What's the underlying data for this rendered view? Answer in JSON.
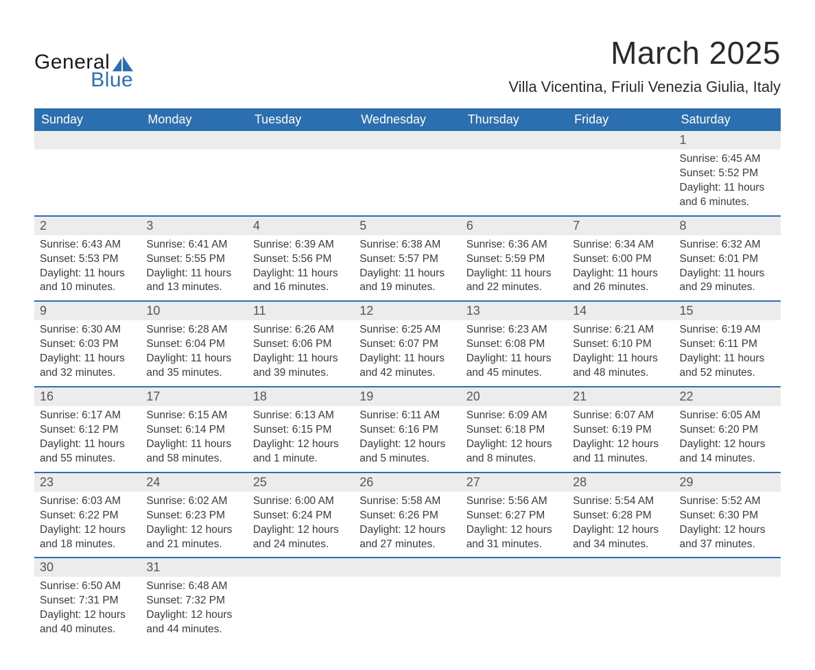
{
  "brand": {
    "word1": "General",
    "word2": "Blue",
    "sail_color": "#2c6fb0",
    "text_color_dark": "#1a1a1a"
  },
  "title": {
    "month_year": "March 2025",
    "location": "Villa Vicentina, Friuli Venezia Giulia, Italy"
  },
  "style": {
    "header_bg": "#2c6fb0",
    "header_text": "#ffffff",
    "daynum_bg": "#ececec",
    "row_divider": "#2c6fb0",
    "body_text": "#3a3a3a",
    "title_fontsize_pt": 35,
    "location_fontsize_pt": 17,
    "header_fontsize_pt": 14,
    "daynum_fontsize_pt": 14,
    "data_fontsize_pt": 12
  },
  "day_labels": [
    "Sunday",
    "Monday",
    "Tuesday",
    "Wednesday",
    "Thursday",
    "Friday",
    "Saturday"
  ],
  "weeks": [
    [
      {
        "n": "",
        "sunrise": "",
        "sunset": "",
        "daylight": ""
      },
      {
        "n": "",
        "sunrise": "",
        "sunset": "",
        "daylight": ""
      },
      {
        "n": "",
        "sunrise": "",
        "sunset": "",
        "daylight": ""
      },
      {
        "n": "",
        "sunrise": "",
        "sunset": "",
        "daylight": ""
      },
      {
        "n": "",
        "sunrise": "",
        "sunset": "",
        "daylight": ""
      },
      {
        "n": "",
        "sunrise": "",
        "sunset": "",
        "daylight": ""
      },
      {
        "n": "1",
        "sunrise": "Sunrise: 6:45 AM",
        "sunset": "Sunset: 5:52 PM",
        "daylight": "Daylight: 11 hours and 6 minutes."
      }
    ],
    [
      {
        "n": "2",
        "sunrise": "Sunrise: 6:43 AM",
        "sunset": "Sunset: 5:53 PM",
        "daylight": "Daylight: 11 hours and 10 minutes."
      },
      {
        "n": "3",
        "sunrise": "Sunrise: 6:41 AM",
        "sunset": "Sunset: 5:55 PM",
        "daylight": "Daylight: 11 hours and 13 minutes."
      },
      {
        "n": "4",
        "sunrise": "Sunrise: 6:39 AM",
        "sunset": "Sunset: 5:56 PM",
        "daylight": "Daylight: 11 hours and 16 minutes."
      },
      {
        "n": "5",
        "sunrise": "Sunrise: 6:38 AM",
        "sunset": "Sunset: 5:57 PM",
        "daylight": "Daylight: 11 hours and 19 minutes."
      },
      {
        "n": "6",
        "sunrise": "Sunrise: 6:36 AM",
        "sunset": "Sunset: 5:59 PM",
        "daylight": "Daylight: 11 hours and 22 minutes."
      },
      {
        "n": "7",
        "sunrise": "Sunrise: 6:34 AM",
        "sunset": "Sunset: 6:00 PM",
        "daylight": "Daylight: 11 hours and 26 minutes."
      },
      {
        "n": "8",
        "sunrise": "Sunrise: 6:32 AM",
        "sunset": "Sunset: 6:01 PM",
        "daylight": "Daylight: 11 hours and 29 minutes."
      }
    ],
    [
      {
        "n": "9",
        "sunrise": "Sunrise: 6:30 AM",
        "sunset": "Sunset: 6:03 PM",
        "daylight": "Daylight: 11 hours and 32 minutes."
      },
      {
        "n": "10",
        "sunrise": "Sunrise: 6:28 AM",
        "sunset": "Sunset: 6:04 PM",
        "daylight": "Daylight: 11 hours and 35 minutes."
      },
      {
        "n": "11",
        "sunrise": "Sunrise: 6:26 AM",
        "sunset": "Sunset: 6:06 PM",
        "daylight": "Daylight: 11 hours and 39 minutes."
      },
      {
        "n": "12",
        "sunrise": "Sunrise: 6:25 AM",
        "sunset": "Sunset: 6:07 PM",
        "daylight": "Daylight: 11 hours and 42 minutes."
      },
      {
        "n": "13",
        "sunrise": "Sunrise: 6:23 AM",
        "sunset": "Sunset: 6:08 PM",
        "daylight": "Daylight: 11 hours and 45 minutes."
      },
      {
        "n": "14",
        "sunrise": "Sunrise: 6:21 AM",
        "sunset": "Sunset: 6:10 PM",
        "daylight": "Daylight: 11 hours and 48 minutes."
      },
      {
        "n": "15",
        "sunrise": "Sunrise: 6:19 AM",
        "sunset": "Sunset: 6:11 PM",
        "daylight": "Daylight: 11 hours and 52 minutes."
      }
    ],
    [
      {
        "n": "16",
        "sunrise": "Sunrise: 6:17 AM",
        "sunset": "Sunset: 6:12 PM",
        "daylight": "Daylight: 11 hours and 55 minutes."
      },
      {
        "n": "17",
        "sunrise": "Sunrise: 6:15 AM",
        "sunset": "Sunset: 6:14 PM",
        "daylight": "Daylight: 11 hours and 58 minutes."
      },
      {
        "n": "18",
        "sunrise": "Sunrise: 6:13 AM",
        "sunset": "Sunset: 6:15 PM",
        "daylight": "Daylight: 12 hours and 1 minute."
      },
      {
        "n": "19",
        "sunrise": "Sunrise: 6:11 AM",
        "sunset": "Sunset: 6:16 PM",
        "daylight": "Daylight: 12 hours and 5 minutes."
      },
      {
        "n": "20",
        "sunrise": "Sunrise: 6:09 AM",
        "sunset": "Sunset: 6:18 PM",
        "daylight": "Daylight: 12 hours and 8 minutes."
      },
      {
        "n": "21",
        "sunrise": "Sunrise: 6:07 AM",
        "sunset": "Sunset: 6:19 PM",
        "daylight": "Daylight: 12 hours and 11 minutes."
      },
      {
        "n": "22",
        "sunrise": "Sunrise: 6:05 AM",
        "sunset": "Sunset: 6:20 PM",
        "daylight": "Daylight: 12 hours and 14 minutes."
      }
    ],
    [
      {
        "n": "23",
        "sunrise": "Sunrise: 6:03 AM",
        "sunset": "Sunset: 6:22 PM",
        "daylight": "Daylight: 12 hours and 18 minutes."
      },
      {
        "n": "24",
        "sunrise": "Sunrise: 6:02 AM",
        "sunset": "Sunset: 6:23 PM",
        "daylight": "Daylight: 12 hours and 21 minutes."
      },
      {
        "n": "25",
        "sunrise": "Sunrise: 6:00 AM",
        "sunset": "Sunset: 6:24 PM",
        "daylight": "Daylight: 12 hours and 24 minutes."
      },
      {
        "n": "26",
        "sunrise": "Sunrise: 5:58 AM",
        "sunset": "Sunset: 6:26 PM",
        "daylight": "Daylight: 12 hours and 27 minutes."
      },
      {
        "n": "27",
        "sunrise": "Sunrise: 5:56 AM",
        "sunset": "Sunset: 6:27 PM",
        "daylight": "Daylight: 12 hours and 31 minutes."
      },
      {
        "n": "28",
        "sunrise": "Sunrise: 5:54 AM",
        "sunset": "Sunset: 6:28 PM",
        "daylight": "Daylight: 12 hours and 34 minutes."
      },
      {
        "n": "29",
        "sunrise": "Sunrise: 5:52 AM",
        "sunset": "Sunset: 6:30 PM",
        "daylight": "Daylight: 12 hours and 37 minutes."
      }
    ],
    [
      {
        "n": "30",
        "sunrise": "Sunrise: 6:50 AM",
        "sunset": "Sunset: 7:31 PM",
        "daylight": "Daylight: 12 hours and 40 minutes."
      },
      {
        "n": "31",
        "sunrise": "Sunrise: 6:48 AM",
        "sunset": "Sunset: 7:32 PM",
        "daylight": "Daylight: 12 hours and 44 minutes."
      },
      {
        "n": "",
        "sunrise": "",
        "sunset": "",
        "daylight": ""
      },
      {
        "n": "",
        "sunrise": "",
        "sunset": "",
        "daylight": ""
      },
      {
        "n": "",
        "sunrise": "",
        "sunset": "",
        "daylight": ""
      },
      {
        "n": "",
        "sunrise": "",
        "sunset": "",
        "daylight": ""
      },
      {
        "n": "",
        "sunrise": "",
        "sunset": "",
        "daylight": ""
      }
    ]
  ]
}
